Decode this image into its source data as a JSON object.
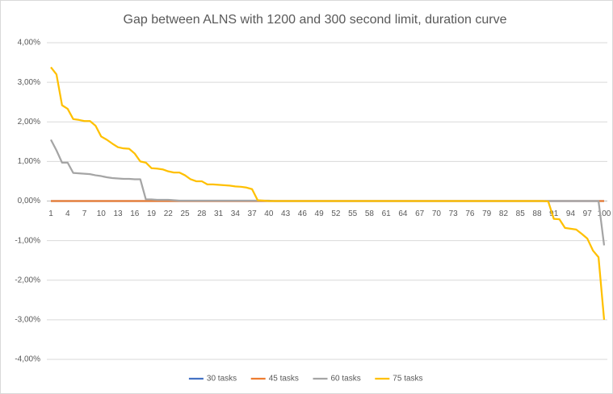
{
  "chart_data": {
    "type": "line",
    "title": "Gap between ALNS with 1200 and 300 second limit, duration curve",
    "categories": [
      1,
      null,
      null,
      4,
      null,
      null,
      7,
      null,
      null,
      10,
      null,
      null,
      13,
      null,
      null,
      16,
      null,
      null,
      19,
      null,
      null,
      22,
      null,
      null,
      25,
      null,
      null,
      28,
      null,
      null,
      31,
      null,
      null,
      34,
      null,
      null,
      37,
      null,
      null,
      40,
      null,
      null,
      43,
      null,
      null,
      46,
      null,
      null,
      49,
      null,
      null,
      52,
      null,
      null,
      55,
      null,
      null,
      58,
      null,
      null,
      61,
      null,
      null,
      64,
      null,
      null,
      67,
      null,
      null,
      70,
      null,
      null,
      73,
      null,
      null,
      76,
      null,
      null,
      79,
      null,
      null,
      82,
      null,
      null,
      85,
      null,
      null,
      88,
      null,
      null,
      91,
      null,
      null,
      94,
      null,
      null,
      97,
      null,
      null,
      100
    ],
    "ylim": [
      -4,
      4
    ],
    "yticks": [
      {
        "value": -4,
        "label": "-4,00%"
      },
      {
        "value": -3,
        "label": "-3,00%"
      },
      {
        "value": -2,
        "label": "-2,00%"
      },
      {
        "value": -1,
        "label": "-1,00%"
      },
      {
        "value": 0,
        "label": "0,00%"
      },
      {
        "value": 1,
        "label": "1,00%"
      },
      {
        "value": 2,
        "label": "2,00%"
      },
      {
        "value": 3,
        "label": "3,00%"
      },
      {
        "value": 4,
        "label": "4,00%"
      }
    ],
    "grid": true,
    "legend": "bottom",
    "series": [
      {
        "name": "30 tasks",
        "color": "#4472c4",
        "values": [
          0,
          0,
          0,
          0,
          0,
          0,
          0,
          0,
          0,
          0,
          0,
          0,
          0,
          0,
          0,
          0,
          0,
          0,
          0,
          0,
          0,
          0,
          0,
          0,
          0,
          0,
          0,
          0,
          0,
          0,
          0,
          0,
          0,
          0,
          0,
          0,
          0,
          0,
          0,
          0,
          0,
          0,
          0,
          0,
          0,
          0,
          0,
          0,
          0,
          0,
          0,
          0,
          0,
          0,
          0,
          0,
          0,
          0,
          0,
          0,
          0,
          0,
          0,
          0,
          0,
          0,
          0,
          0,
          0,
          0,
          0,
          0,
          0,
          0,
          0,
          0,
          0,
          0,
          0,
          0,
          0,
          0,
          0,
          0,
          0,
          0,
          0,
          0,
          0,
          0,
          0,
          0,
          0,
          0,
          0,
          0,
          0,
          0,
          0,
          0
        ]
      },
      {
        "name": "45 tasks",
        "color": "#ed7d31",
        "values": [
          0,
          0,
          0,
          0,
          0,
          0,
          0,
          0,
          0,
          0,
          0,
          0,
          0,
          0,
          0,
          0,
          0,
          0,
          0,
          0,
          0,
          0,
          0,
          0,
          0,
          0,
          0,
          0,
          0,
          0,
          0,
          0,
          0,
          0,
          0,
          0,
          0,
          0,
          0,
          0,
          0,
          0,
          0,
          0,
          0,
          0,
          0,
          0,
          0,
          0,
          0,
          0,
          0,
          0,
          0,
          0,
          0,
          0,
          0,
          0,
          0,
          0,
          0,
          0,
          0,
          0,
          0,
          0,
          0,
          0,
          0,
          0,
          0,
          0,
          0,
          0,
          0,
          0,
          0,
          0,
          0,
          0,
          0,
          0,
          0,
          0,
          0,
          0,
          0,
          0,
          0,
          0,
          0,
          0,
          0,
          0,
          0,
          0,
          0,
          0
        ]
      },
      {
        "name": "60 tasks",
        "color": "#a5a5a5",
        "values": [
          1.55,
          1.28,
          0.97,
          0.97,
          0.71,
          0.7,
          0.69,
          0.68,
          0.65,
          0.63,
          0.6,
          0.58,
          0.57,
          0.56,
          0.56,
          0.55,
          0.55,
          0.04,
          0.04,
          0.03,
          0.03,
          0.03,
          0.02,
          0.01,
          0.01,
          0.01,
          0.01,
          0.01,
          0.01,
          0.01,
          0.01,
          0.01,
          0.01,
          0.01,
          0.01,
          0.01,
          0.01,
          0.01,
          0.01,
          0.01,
          0,
          0,
          0,
          0,
          0,
          0,
          0,
          0,
          0,
          0,
          0,
          0,
          0,
          0,
          0,
          0,
          0,
          0,
          0,
          0,
          0,
          0,
          0,
          0,
          0,
          0,
          0,
          0,
          0,
          0,
          0,
          0,
          0,
          0,
          0,
          0,
          0,
          0,
          0,
          0,
          0,
          0,
          0,
          0,
          0,
          0,
          0,
          0,
          0,
          0,
          0,
          0,
          0,
          0,
          0,
          0,
          0,
          0,
          0,
          -1.12
        ]
      },
      {
        "name": "75 tasks",
        "color": "#ffc000",
        "values": [
          3.38,
          3.2,
          2.42,
          2.33,
          2.07,
          2.05,
          2.02,
          2.02,
          1.9,
          1.63,
          1.55,
          1.45,
          1.36,
          1.33,
          1.32,
          1.2,
          1.0,
          0.97,
          0.83,
          0.82,
          0.8,
          0.75,
          0.72,
          0.72,
          0.65,
          0.55,
          0.5,
          0.5,
          0.42,
          0.42,
          0.41,
          0.4,
          0.39,
          0.37,
          0.36,
          0.34,
          0.3,
          0.02,
          0.01,
          0,
          0,
          0,
          0,
          0,
          0,
          0,
          0,
          0,
          0,
          0,
          0,
          0,
          0,
          0,
          0,
          0,
          0,
          0,
          0,
          0,
          0,
          0,
          0,
          0,
          0,
          0,
          0,
          0,
          0,
          0,
          0,
          0,
          0,
          0,
          0,
          0,
          0,
          0,
          0,
          0,
          0,
          0,
          0,
          0,
          0,
          0,
          0,
          0,
          0,
          -0.01,
          -0.45,
          -0.46,
          -0.68,
          -0.7,
          -0.72,
          -0.83,
          -0.95,
          -1.25,
          -1.42,
          -3.0
        ]
      }
    ]
  }
}
